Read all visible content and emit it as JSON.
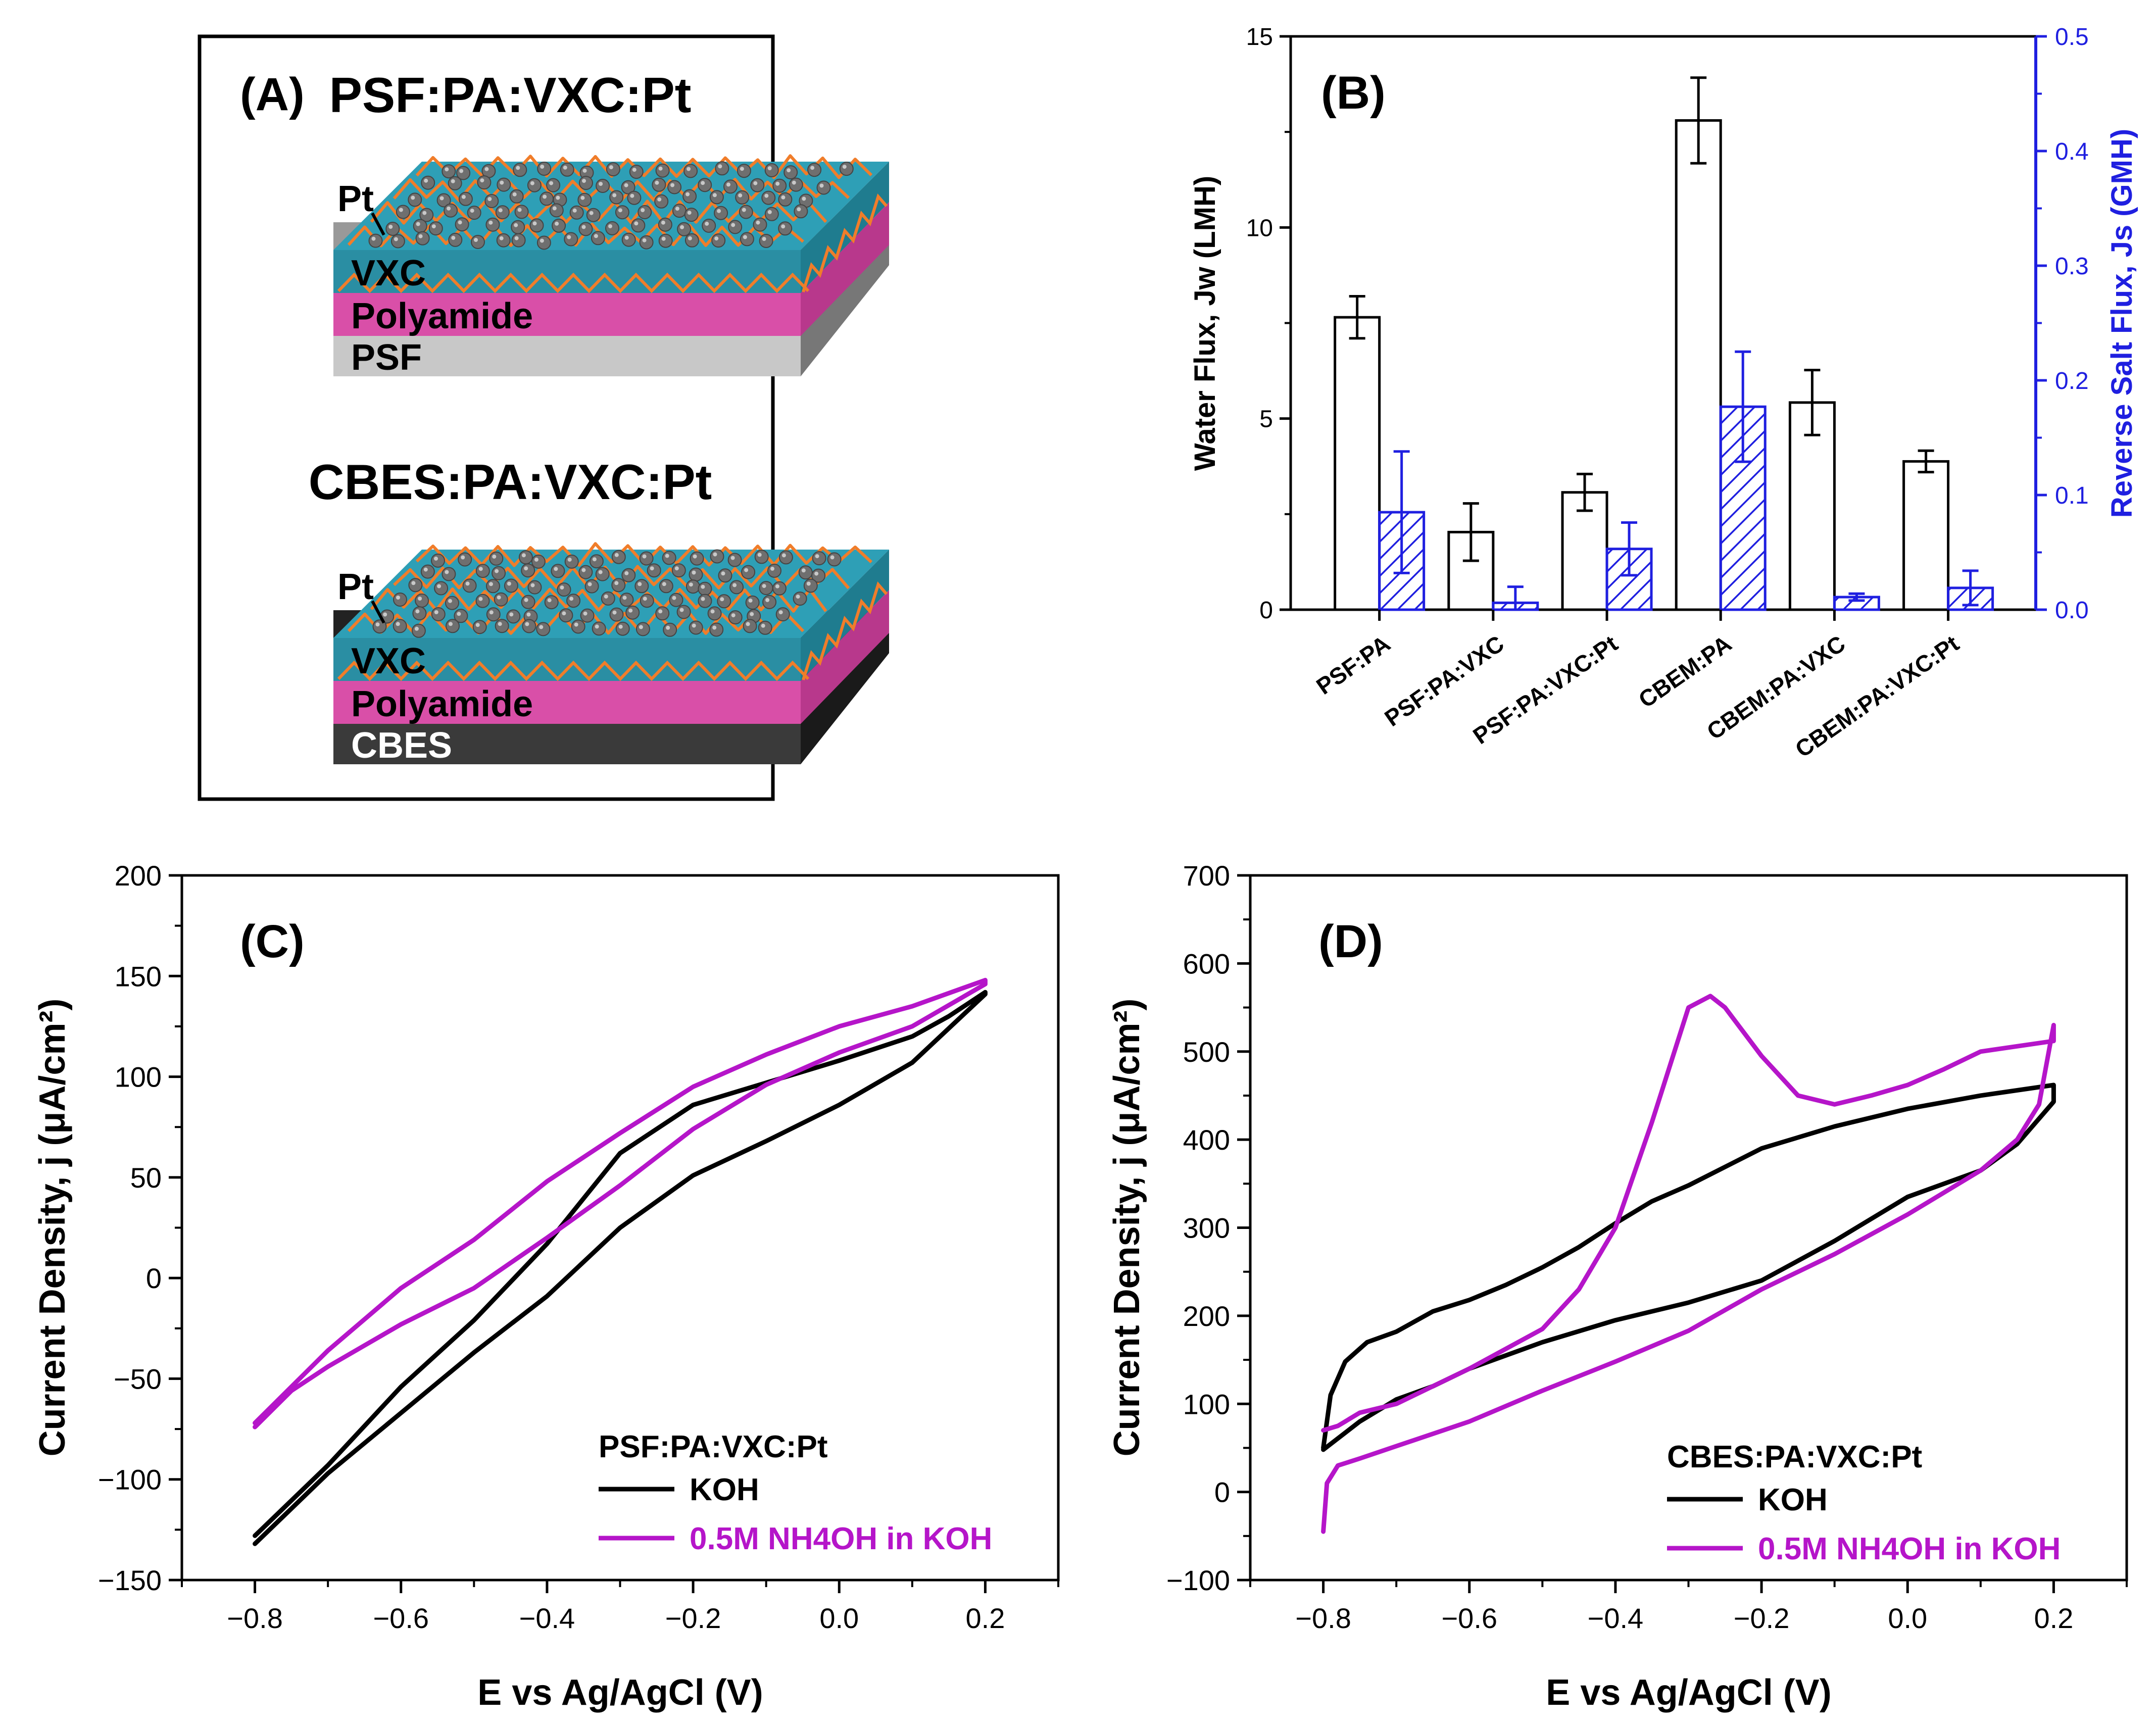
{
  "panel_a": {
    "label": "(A)",
    "stacks": [
      {
        "title": "PSF:PA:VXC:Pt",
        "layers": [
          "Pt",
          "VXC",
          "Polyamide",
          "PSF"
        ],
        "base_color": "#c8c8c8",
        "base_text_color": "#000000"
      },
      {
        "title": "CBES:PA:VXC:Pt",
        "layers": [
          "Pt",
          "VXC",
          "Polyamide",
          "CBES"
        ],
        "base_color": "#3a3a3a",
        "base_text_color": "#ffffff"
      }
    ],
    "colors": {
      "vxc": "#2a8ea3",
      "polyamide": "#d94fa8",
      "fiber": "#f07d2a",
      "particle": "#6f6f6f"
    }
  },
  "chart_data": [
    {
      "id": "B",
      "label": "(B)",
      "type": "bar",
      "categories": [
        "PSF:PA",
        "PSF:PA:VXC",
        "PSF:PA:VXC:Pt",
        "CBEM:PA",
        "CBEM:PA:VXC",
        "CBEM:PA:VXC:Pt"
      ],
      "series": [
        {
          "name": "Water Flux",
          "axis": "left",
          "values": [
            7.65,
            2.03,
            3.07,
            12.8,
            5.42,
            3.88
          ],
          "errors": [
            0.55,
            0.75,
            0.48,
            1.12,
            0.85,
            0.28
          ],
          "color": "#000000",
          "fill": "none"
        },
        {
          "name": "Reverse Salt Flux",
          "axis": "right",
          "values": [
            0.085,
            0.006,
            0.053,
            0.177,
            0.011,
            0.019
          ],
          "errors": [
            0.053,
            0.014,
            0.023,
            0.048,
            0.003,
            0.015
          ],
          "color": "#1f1fe0",
          "fill": "hatch"
        }
      ],
      "ylabel": "Water Flux, Jw (LMH)",
      "y2label": "Reverse Salt Flux, Js (GMH)",
      "ylim": [
        0,
        15
      ],
      "yticks": [
        "0",
        "5",
        "10",
        "15"
      ],
      "y2lim": [
        0,
        0.5
      ],
      "y2ticks": [
        "0.0",
        "0.1",
        "0.2",
        "0.3",
        "0.4",
        "0.5"
      ],
      "y2color": "#1f1fe0"
    },
    {
      "id": "C",
      "label": "(C)",
      "type": "line",
      "xlabel": "E vs Ag/AgCl (V)",
      "ylabel": "Current Density, j (μA/cm²)",
      "xlim": [
        -0.9,
        0.3
      ],
      "ylim": [
        -150,
        200
      ],
      "xticks": [
        "−0.8",
        "−0.6",
        "−0.4",
        "−0.2",
        "0.0",
        "0.2"
      ],
      "yticks": [
        "−150",
        "−100",
        "−50",
        "0",
        "50",
        "100",
        "150",
        "200"
      ],
      "legend_title": "PSF:PA:VXC:Pt",
      "series": [
        {
          "name": "KOH",
          "color": "#000000",
          "x": [
            -0.8,
            -0.7,
            -0.6,
            -0.5,
            -0.4,
            -0.3,
            -0.2,
            -0.1,
            0.0,
            0.1,
            0.2,
            0.2,
            0.15,
            0.1,
            0.0,
            -0.1,
            -0.2,
            -0.3,
            -0.4,
            -0.5,
            -0.6,
            -0.7,
            -0.8
          ],
          "y": [
            -132,
            -97,
            -67,
            -37,
            -9,
            25,
            51,
            68,
            86,
            107,
            141,
            142,
            130,
            120,
            108,
            97,
            86,
            62,
            17,
            -21,
            -54,
            -93,
            -128
          ]
        },
        {
          "name": "0.5M NH4OH in KOH",
          "color": "#b515c9",
          "x": [
            -0.8,
            -0.75,
            -0.7,
            -0.6,
            -0.5,
            -0.4,
            -0.3,
            -0.2,
            -0.1,
            0.0,
            0.1,
            0.2,
            0.2,
            0.1,
            0.0,
            -0.1,
            -0.2,
            -0.3,
            -0.4,
            -0.5,
            -0.6,
            -0.7,
            -0.8
          ],
          "y": [
            -74,
            -56,
            -44,
            -23,
            -5,
            20,
            46,
            74,
            96,
            112,
            125,
            146,
            148,
            135,
            125,
            111,
            95,
            72,
            48,
            19,
            -5,
            -36,
            -72
          ]
        }
      ]
    },
    {
      "id": "D",
      "label": "(D)",
      "type": "line",
      "xlabel": "E vs Ag/AgCl (V)",
      "ylabel": "Current Density, j (μA/cm²)",
      "xlim": [
        -0.9,
        0.3
      ],
      "ylim": [
        -100,
        700
      ],
      "xticks": [
        "−0.8",
        "−0.6",
        "−0.4",
        "−0.2",
        "0.0",
        "0.2"
      ],
      "yticks": [
        "−100",
        "0",
        "100",
        "200",
        "300",
        "400",
        "500",
        "600",
        "700"
      ],
      "legend_title": "CBES:PA:VXC:Pt",
      "series": [
        {
          "name": "KOH",
          "color": "#000000",
          "x": [
            -0.8,
            -0.79,
            -0.77,
            -0.74,
            -0.7,
            -0.65,
            -0.6,
            -0.55,
            -0.5,
            -0.45,
            -0.4,
            -0.35,
            -0.3,
            -0.2,
            -0.1,
            0.0,
            0.1,
            0.2,
            0.2,
            0.15,
            0.1,
            0.0,
            -0.1,
            -0.2,
            -0.3,
            -0.4,
            -0.5,
            -0.6,
            -0.65,
            -0.7,
            -0.75,
            -0.8
          ],
          "y": [
            50,
            110,
            148,
            170,
            182,
            205,
            218,
            235,
            255,
            278,
            305,
            330,
            348,
            390,
            415,
            435,
            450,
            462,
            443,
            395,
            365,
            335,
            285,
            240,
            215,
            195,
            170,
            140,
            120,
            105,
            80,
            48
          ]
        },
        {
          "name": "0.5M NH4OH in KOH",
          "color": "#b515c9",
          "x": [
            -0.8,
            -0.795,
            -0.78,
            -0.75,
            -0.7,
            -0.6,
            -0.5,
            -0.4,
            -0.3,
            -0.2,
            -0.1,
            0.0,
            0.1,
            0.15,
            0.18,
            0.2,
            0.2,
            0.1,
            0.05,
            0.0,
            -0.05,
            -0.1,
            -0.15,
            -0.2,
            -0.25,
            -0.27,
            -0.3,
            -0.35,
            -0.4,
            -0.45,
            -0.5,
            -0.6,
            -0.7,
            -0.75,
            -0.78,
            -0.8
          ],
          "y": [
            -45,
            10,
            30,
            38,
            52,
            80,
            115,
            148,
            183,
            230,
            270,
            315,
            365,
            400,
            440,
            530,
            512,
            500,
            480,
            462,
            450,
            440,
            450,
            495,
            550,
            563,
            550,
            420,
            300,
            230,
            185,
            140,
            100,
            90,
            75,
            70
          ]
        }
      ]
    }
  ]
}
